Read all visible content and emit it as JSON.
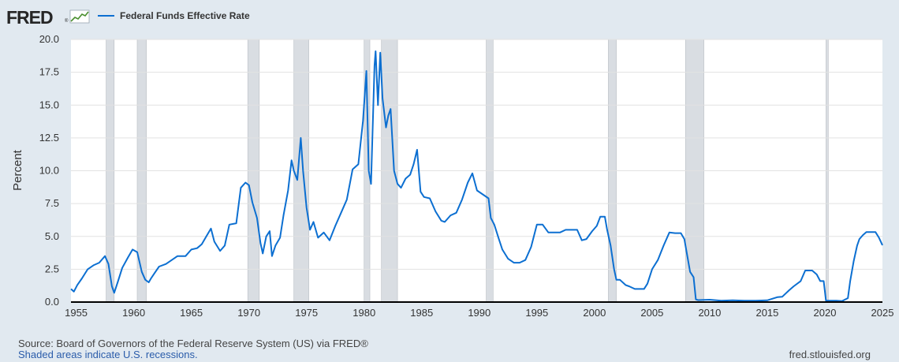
{
  "logo": {
    "text": "FRED",
    "registered": "®"
  },
  "legend": {
    "label": "Federal Funds Effective Rate"
  },
  "colors": {
    "line": "#0c6fd1",
    "recession": "#d9dde2",
    "background": "#e1e9f0",
    "plot": "#ffffff",
    "grid": "#e2e2e2"
  },
  "footer": {
    "source": "Source: Board of Governors of the Federal Reserve System (US) via FRED®",
    "note": "Shaded areas indicate U.S. recessions.",
    "site": "fred.stlouisfed.org"
  },
  "chart_data": {
    "type": "line",
    "ylabel": "Percent",
    "xlim": [
      1954.55,
      2025.0
    ],
    "ylim": [
      0,
      20
    ],
    "grid": true,
    "legend_position": "top-left",
    "xticks": [
      1955,
      1960,
      1965,
      1970,
      1975,
      1980,
      1985,
      1990,
      1995,
      2000,
      2005,
      2010,
      2015,
      2020,
      2025
    ],
    "xtick_labels": [
      "1955",
      "1960",
      "1965",
      "1970",
      "1975",
      "1980",
      "1985",
      "1990",
      "1995",
      "2000",
      "2005",
      "2010",
      "2015",
      "2020",
      "2025"
    ],
    "yticks": [
      0,
      2.5,
      5,
      7.5,
      10,
      12.5,
      15,
      17.5,
      20
    ],
    "ytick_labels": [
      "0.0",
      "2.5",
      "5.0",
      "7.5",
      "10.0",
      "12.5",
      "15.0",
      "17.5",
      "20.0"
    ],
    "recessions": [
      [
        1957.6,
        1958.3
      ],
      [
        1960.3,
        1961.1
      ],
      [
        1969.9,
        1970.9
      ],
      [
        1973.9,
        1975.2
      ],
      [
        1980.0,
        1980.5
      ],
      [
        1981.5,
        1982.9
      ],
      [
        1990.6,
        1991.2
      ],
      [
        2001.2,
        2001.9
      ],
      [
        2007.9,
        2009.5
      ],
      [
        2020.1,
        2020.3
      ]
    ],
    "series": [
      {
        "name": "Federal Funds Effective Rate",
        "x": [
          1954.55,
          1954.8,
          1955.1,
          1955.5,
          1956.0,
          1956.5,
          1957.0,
          1957.5,
          1957.8,
          1958.1,
          1958.3,
          1958.6,
          1959.0,
          1959.5,
          1959.9,
          1960.3,
          1960.7,
          1961.0,
          1961.3,
          1961.5,
          1961.8,
          1962.2,
          1962.8,
          1963.3,
          1963.8,
          1964.5,
          1965.0,
          1965.5,
          1965.9,
          1966.3,
          1966.7,
          1967.0,
          1967.5,
          1967.9,
          1968.3,
          1968.9,
          1969.3,
          1969.7,
          1970.0,
          1970.3,
          1970.7,
          1971.0,
          1971.2,
          1971.5,
          1971.8,
          1972.0,
          1972.3,
          1972.7,
          1973.0,
          1973.4,
          1973.7,
          1973.9,
          1974.2,
          1974.5,
          1974.7,
          1975.0,
          1975.3,
          1975.6,
          1976.0,
          1976.5,
          1977.0,
          1977.5,
          1978.0,
          1978.5,
          1979.0,
          1979.5,
          1979.9,
          1980.2,
          1980.4,
          1980.6,
          1980.9,
          1981.0,
          1981.2,
          1981.4,
          1981.6,
          1981.9,
          1982.1,
          1982.3,
          1982.6,
          1982.9,
          1983.2,
          1983.6,
          1984.0,
          1984.3,
          1984.6,
          1984.9,
          1985.2,
          1985.7,
          1986.2,
          1986.7,
          1987.0,
          1987.5,
          1988.0,
          1988.5,
          1989.0,
          1989.4,
          1989.8,
          1990.3,
          1990.8,
          1991.0,
          1991.3,
          1991.7,
          1992.0,
          1992.5,
          1993.0,
          1993.5,
          1994.0,
          1994.5,
          1995.0,
          1995.5,
          1996.0,
          1996.5,
          1997.0,
          1997.5,
          1998.0,
          1998.5,
          1998.9,
          1999.3,
          1999.8,
          2000.2,
          2000.5,
          2000.9,
          2001.1,
          2001.4,
          2001.7,
          2001.9,
          2002.2,
          2002.7,
          2003.0,
          2003.5,
          2003.9,
          2004.3,
          2004.6,
          2005.0,
          2005.5,
          2006.0,
          2006.5,
          2007.0,
          2007.5,
          2007.8,
          2008.0,
          2008.3,
          2008.6,
          2008.8,
          2009.0,
          2010.0,
          2011.0,
          2012.0,
          2013.0,
          2014.0,
          2015.0,
          2015.9,
          2016.3,
          2016.9,
          2017.3,
          2017.9,
          2018.3,
          2018.9,
          2019.3,
          2019.6,
          2019.9,
          2020.1,
          2020.2,
          2020.5,
          2021.0,
          2021.5,
          2022.0,
          2022.2,
          2022.5,
          2022.8,
          2023.0,
          2023.3,
          2023.6,
          2024.0,
          2024.4,
          2024.7,
          2025.0
        ],
        "values": [
          1.0,
          0.8,
          1.3,
          1.8,
          2.5,
          2.8,
          3.0,
          3.5,
          2.9,
          1.2,
          0.7,
          1.5,
          2.6,
          3.4,
          4.0,
          3.8,
          2.3,
          1.7,
          1.5,
          1.8,
          2.2,
          2.7,
          2.9,
          3.2,
          3.5,
          3.5,
          4.0,
          4.1,
          4.4,
          5.0,
          5.6,
          4.6,
          3.9,
          4.3,
          5.9,
          6.0,
          8.7,
          9.1,
          8.9,
          7.6,
          6.4,
          4.5,
          3.7,
          5.0,
          5.4,
          3.5,
          4.3,
          4.9,
          6.6,
          8.5,
          10.8,
          10.0,
          9.3,
          12.5,
          10.0,
          7.2,
          5.5,
          6.1,
          4.9,
          5.3,
          4.7,
          5.8,
          6.8,
          7.8,
          10.1,
          10.5,
          13.8,
          17.6,
          10.0,
          9.0,
          18.0,
          19.1,
          15.0,
          19.0,
          15.5,
          13.3,
          14.2,
          14.7,
          10.0,
          9.0,
          8.7,
          9.4,
          9.7,
          10.5,
          11.6,
          8.4,
          8.0,
          7.9,
          6.9,
          6.2,
          6.1,
          6.6,
          6.8,
          7.8,
          9.1,
          9.8,
          8.5,
          8.2,
          7.9,
          6.4,
          5.9,
          4.8,
          4.0,
          3.3,
          3.0,
          3.0,
          3.2,
          4.2,
          5.9,
          5.9,
          5.3,
          5.3,
          5.3,
          5.5,
          5.5,
          5.5,
          4.7,
          4.8,
          5.4,
          5.8,
          6.5,
          6.5,
          5.5,
          4.3,
          2.5,
          1.7,
          1.7,
          1.3,
          1.2,
          1.0,
          1.0,
          1.0,
          1.4,
          2.5,
          3.2,
          4.3,
          5.3,
          5.25,
          5.25,
          4.8,
          3.8,
          2.3,
          1.9,
          0.2,
          0.15,
          0.18,
          0.1,
          0.14,
          0.1,
          0.1,
          0.13,
          0.38,
          0.4,
          0.9,
          1.2,
          1.6,
          2.4,
          2.4,
          2.1,
          1.6,
          1.6,
          0.1,
          0.1,
          0.1,
          0.1,
          0.08,
          0.3,
          1.6,
          3.1,
          4.3,
          4.8,
          5.1,
          5.33,
          5.33,
          5.33,
          4.9,
          4.33
        ]
      }
    ]
  }
}
